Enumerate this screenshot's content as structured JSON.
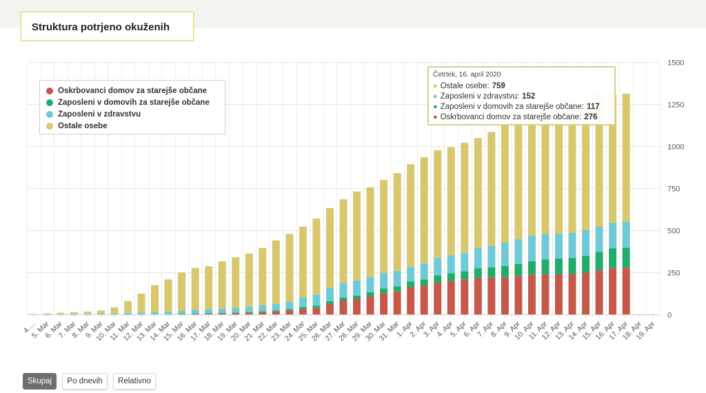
{
  "header": {
    "title": "Struktura potrjeno okuženih"
  },
  "legend": {
    "items": [
      {
        "label": "Oskrbovanci domov za starejše občane",
        "color": "#c4594a"
      },
      {
        "label": "Zaposleni v domovih za starejše občane",
        "color": "#23ab6a"
      },
      {
        "label": "Zaposleni v zdravstvu",
        "color": "#6ecad6"
      },
      {
        "label": "Ostale osebe",
        "color": "#d8c76c"
      }
    ]
  },
  "tooltip": {
    "date": "Četrtek, 16. april 2020",
    "rows": [
      {
        "label": "Ostale osebe:",
        "value": "759",
        "color": "#d8c76c"
      },
      {
        "label": "Zaposleni v zdravstvu:",
        "value": "152",
        "color": "#6ecad6"
      },
      {
        "label": "Zaposleni v domovih za starejše občane:",
        "value": "117",
        "color": "#23ab6a"
      },
      {
        "label": "Oskrbovanci domov za starejše občane:",
        "value": "276",
        "color": "#c4594a"
      }
    ]
  },
  "buttons": [
    {
      "label": "Skupaj",
      "active": true
    },
    {
      "label": "Po dnevih",
      "active": false
    },
    {
      "label": "Relativno",
      "active": false
    }
  ],
  "chart_data": {
    "type": "bar",
    "stacked": true,
    "ylim": [
      0,
      1500
    ],
    "yticks": [
      0,
      250,
      500,
      750,
      1000,
      1250,
      1500
    ],
    "grid": true,
    "legend_position": "top-left",
    "categories": [
      "4.…",
      "5. Mar",
      "6. Mar",
      "7. Mar",
      "8. Mar",
      "9. Mar",
      "10. Mar",
      "11. Mar",
      "12. Mar",
      "13. Mar",
      "14. Mar",
      "15. Mar",
      "16. Mar",
      "17. Mar",
      "18. Mar",
      "19. Mar",
      "20. Mar",
      "21. Mar",
      "22. Mar",
      "23. Mar",
      "24. Mar",
      "25. Mar",
      "26. Mar",
      "27. Mar",
      "28. Mar",
      "29. Mar",
      "30. Mar",
      "31. Mar",
      "1. Apr",
      "2. Apr",
      "3. Apr",
      "4. Apr",
      "5. Apr",
      "6. Apr",
      "7. Apr",
      "8. Apr",
      "9. Apr",
      "10. Apr",
      "11. Apr",
      "12. Apr",
      "13. Apr",
      "14. Apr",
      "15. Apr",
      "16. Apr",
      "17. Apr",
      "18. Apr",
      "19. Apr"
    ],
    "series": [
      {
        "name": "Oskrbovanci domov za starejše občane",
        "color": "#c4594a",
        "values": [
          0,
          0,
          0,
          0,
          0,
          0,
          0,
          0,
          0,
          0,
          0,
          2,
          3,
          4,
          6,
          8,
          10,
          14,
          18,
          24,
          32,
          38,
          62,
          82,
          92,
          108,
          126,
          136,
          162,
          172,
          190,
          198,
          206,
          218,
          220,
          222,
          228,
          236,
          238,
          240,
          240,
          248,
          262,
          276,
          278,
          null,
          null
        ]
      },
      {
        "name": "Zaposleni v domovih za starejše občane",
        "color": "#23ab6a",
        "values": [
          0,
          0,
          0,
          0,
          0,
          0,
          0,
          0,
          0,
          0,
          0,
          1,
          1,
          2,
          2,
          3,
          4,
          5,
          6,
          8,
          12,
          14,
          16,
          18,
          20,
          24,
          28,
          30,
          34,
          36,
          42,
          46,
          50,
          56,
          60,
          66,
          72,
          80,
          88,
          92,
          94,
          100,
          110,
          117,
          118,
          null,
          null
        ]
      },
      {
        "name": "Zaposleni v zdravstvu",
        "color": "#6ecad6",
        "values": [
          0,
          1,
          1,
          2,
          3,
          4,
          6,
          9,
          11,
          14,
          16,
          18,
          22,
          24,
          26,
          28,
          32,
          36,
          38,
          42,
          56,
          66,
          80,
          86,
          90,
          90,
          92,
          92,
          86,
          96,
          104,
          108,
          112,
          120,
          128,
          140,
          148,
          152,
          152,
          148,
          152,
          152,
          150,
          152,
          156,
          null,
          null
        ]
      },
      {
        "name": "Ostale osebe",
        "color": "#d8c76c",
        "values": [
          2,
          5,
          9,
          11,
          14,
          20,
          36,
          70,
          112,
          160,
          192,
          228,
          250,
          256,
          282,
          300,
          316,
          340,
          378,
          404,
          422,
          452,
          474,
          498,
          528,
          533,
          554,
          582,
          610,
          630,
          640,
          642,
          652,
          654,
          676,
          700,
          722,
          730,
          752,
          760,
          770,
          776,
          790,
          759,
          760,
          null,
          null
        ]
      }
    ]
  }
}
